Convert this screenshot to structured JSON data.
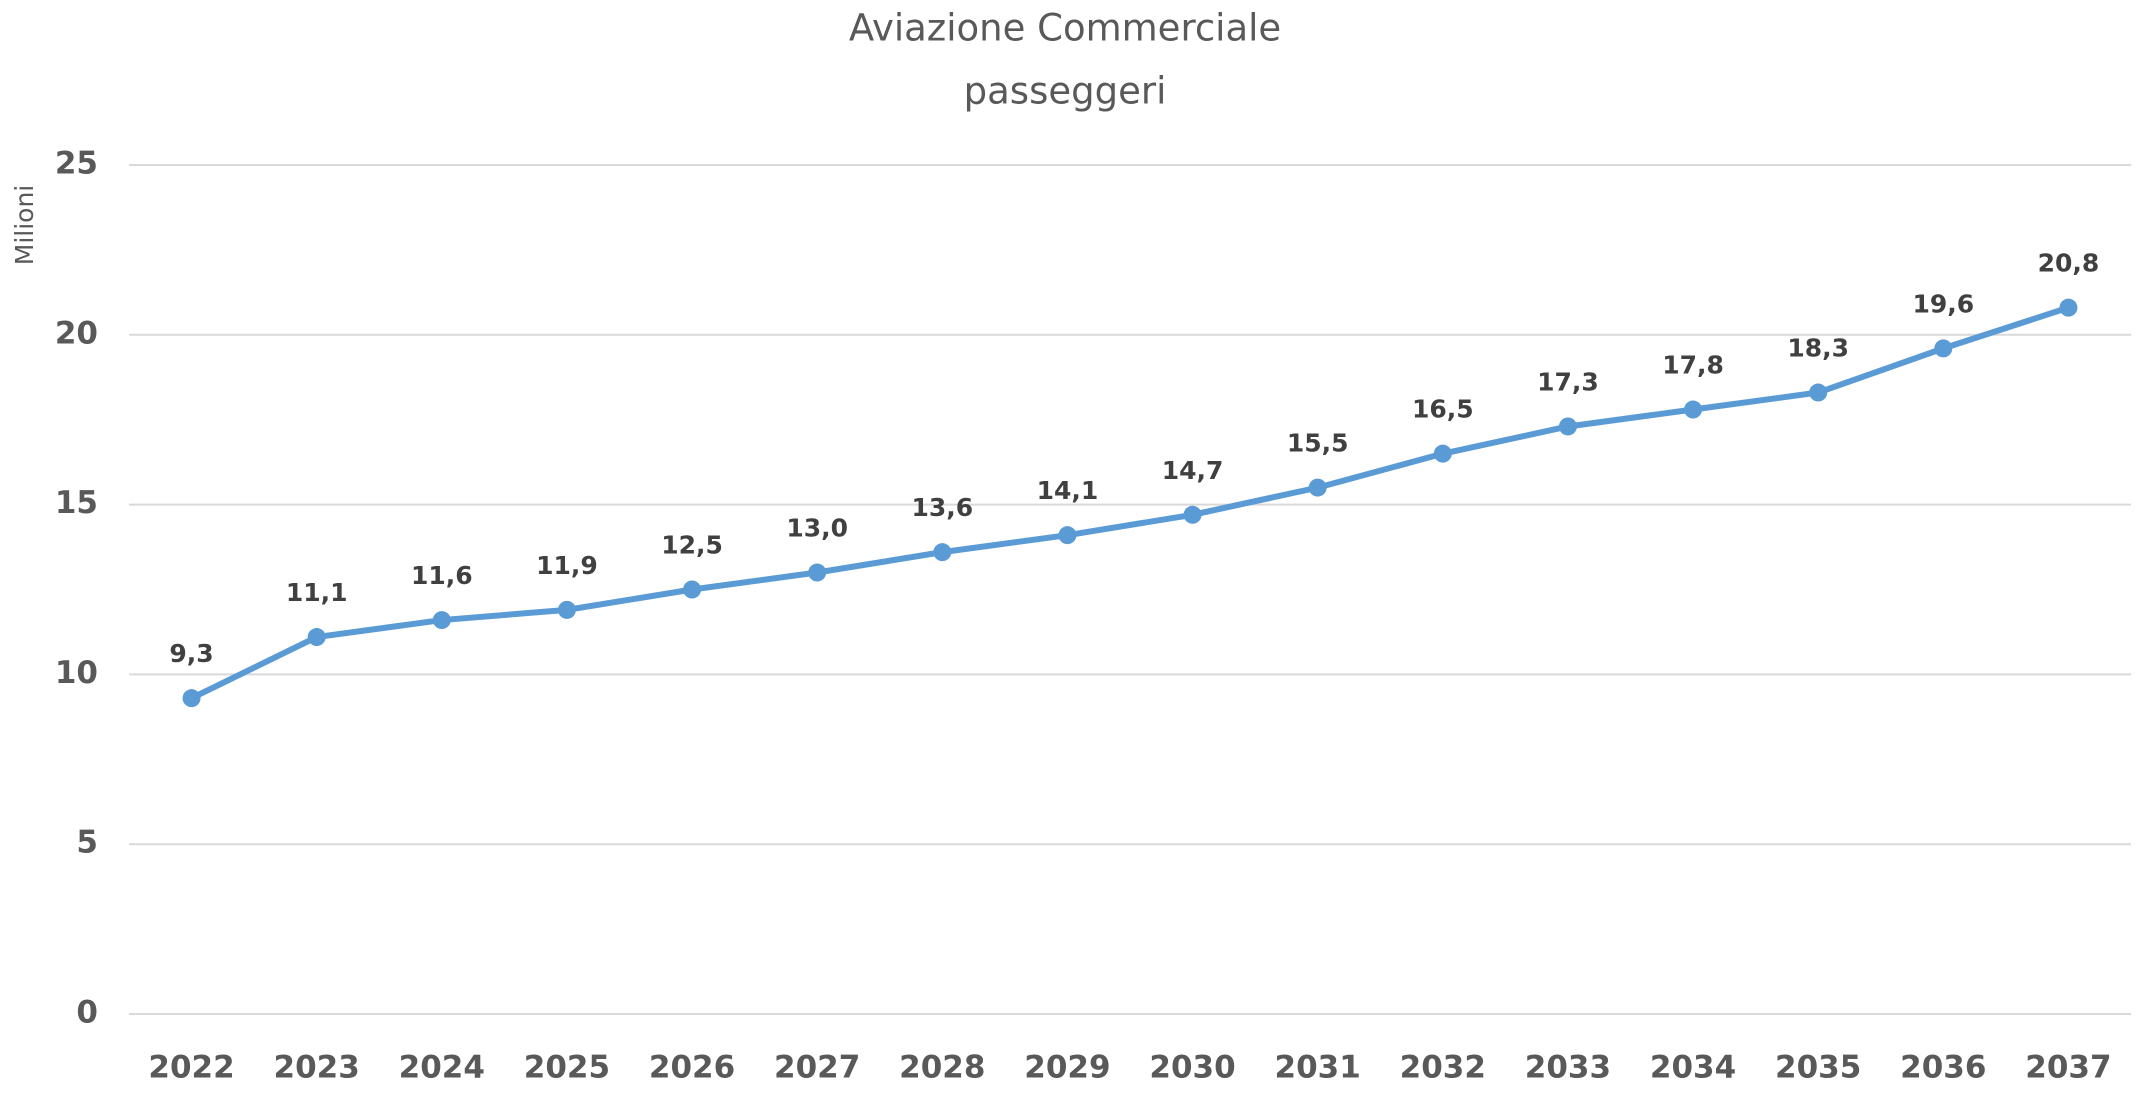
{
  "chart_data": {
    "type": "line",
    "title": "Aviazione Commerciale",
    "subtitle": "passeggeri",
    "y_label": "Milioni",
    "categories": [
      "2022",
      "2023",
      "2024",
      "2025",
      "2026",
      "2027",
      "2028",
      "2029",
      "2030",
      "2031",
      "2032",
      "2033",
      "2034",
      "2035",
      "2036",
      "2037"
    ],
    "values": [
      9.3,
      11.1,
      11.6,
      11.9,
      12.5,
      13.0,
      13.6,
      14.1,
      14.7,
      15.5,
      16.5,
      17.3,
      17.8,
      18.3,
      19.6,
      20.8
    ],
    "value_labels": [
      "9,3",
      "11,1",
      "11,6",
      "11,9",
      "12,5",
      "13,0",
      "13,6",
      "14,1",
      "14,7",
      "15,5",
      "16,5",
      "17,3",
      "17,8",
      "18,3",
      "19,6",
      "20,8"
    ],
    "color": "#5b9bd5",
    "ylim": [
      0,
      25
    ],
    "yticks": [
      0,
      5,
      10,
      15,
      20,
      25
    ],
    "grid": true
  }
}
